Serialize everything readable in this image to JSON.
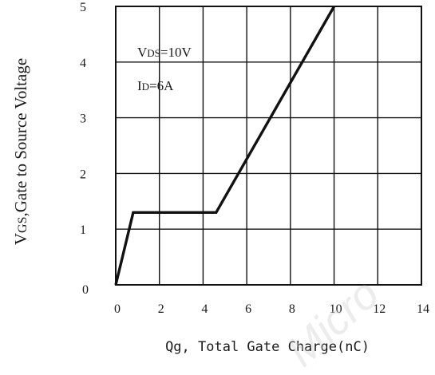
{
  "chart_data": {
    "type": "line",
    "title": "",
    "xlabel": "Qg, Total Gate Charge(nC)",
    "ylabel": "VGS,Gate to Source Voltage",
    "ylabel_parts": {
      "prefix": "V",
      "sub": "GS",
      "rest": ",Gate to Source Voltage"
    },
    "xlim": [
      0,
      14
    ],
    "ylim": [
      0,
      5
    ],
    "x_ticks": [
      0,
      2,
      4,
      6,
      8,
      10,
      12,
      14
    ],
    "y_ticks": [
      0,
      1,
      2,
      3,
      4,
      5
    ],
    "x_tick_labels": [
      "0",
      "2",
      "4",
      "6",
      "8",
      "10",
      "12",
      "14"
    ],
    "y_tick_labels": [
      "0",
      "1",
      "2",
      "3",
      "4",
      "5"
    ],
    "x_grid": [
      2,
      4,
      6,
      8,
      10,
      12
    ],
    "y_grid": [
      1,
      2,
      3,
      4
    ],
    "grid": true,
    "legend": "none",
    "series": [
      {
        "x": [
          0,
          0.8,
          4.6,
          10.0
        ],
        "y": [
          0,
          1.3,
          1.3,
          5.0
        ]
      }
    ],
    "annotations": [
      {
        "text": "VDS=10V",
        "prefix": "V",
        "sub": "DS",
        "rest": "=10V"
      },
      {
        "text": "ID=6A",
        "prefix": "I",
        "sub": "D",
        "rest": "=6A"
      }
    ],
    "line_color": "#111111",
    "grid_color": "#111111"
  },
  "watermark": {
    "text": "Micro"
  }
}
